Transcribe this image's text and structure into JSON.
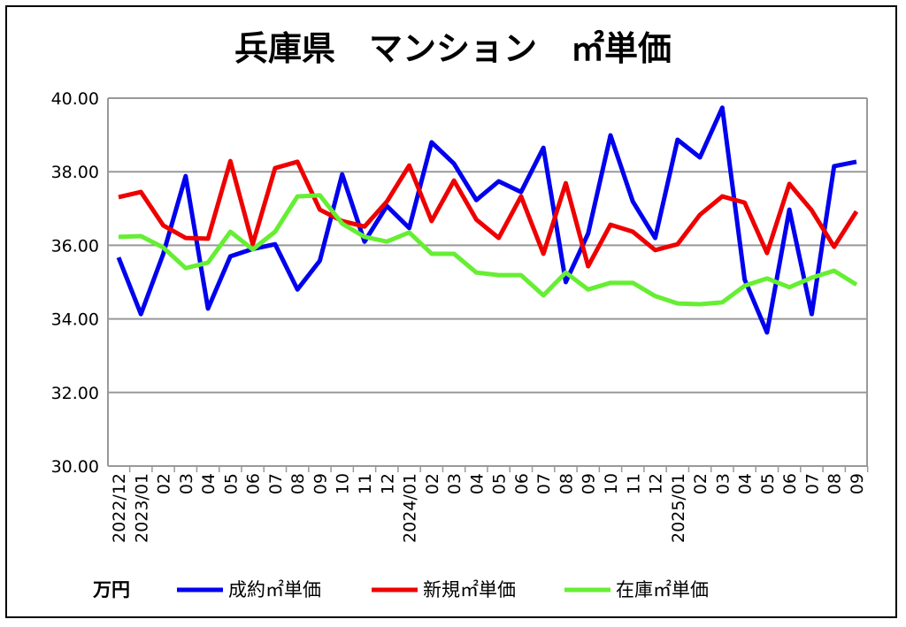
{
  "chart_data": {
    "type": "line",
    "title": "兵庫県　マンション　㎡単価",
    "unit_label": "万円",
    "ylim": [
      30,
      40
    ],
    "yticks": [
      "30.00",
      "32.00",
      "34.00",
      "36.00",
      "38.00",
      "40.00"
    ],
    "grid": true,
    "legend_placement": "bottom",
    "categories": [
      "2022/12",
      "2023/01",
      "02",
      "03",
      "04",
      "05",
      "06",
      "07",
      "08",
      "09",
      "10",
      "11",
      "12",
      "2024/01",
      "02",
      "03",
      "04",
      "05",
      "06",
      "07",
      "08",
      "09",
      "10",
      "11",
      "12",
      "2025/01",
      "02",
      "03",
      "04",
      "05",
      "06",
      "07",
      "08",
      "09"
    ],
    "series": [
      {
        "name": "成約㎡単価",
        "color": "#0000ee",
        "values": [
          35.67,
          34.13,
          35.77,
          37.88,
          34.28,
          35.7,
          35.9,
          36.03,
          34.8,
          35.58,
          37.93,
          36.1,
          37.07,
          36.47,
          38.8,
          38.22,
          37.23,
          37.74,
          37.45,
          38.65,
          35.0,
          36.32,
          38.99,
          37.19,
          36.2,
          38.87,
          38.39,
          39.74,
          35.07,
          33.63,
          36.97,
          34.13,
          38.15,
          38.27
        ]
      },
      {
        "name": "新規㎡単価",
        "color": "#ee0000",
        "values": [
          37.31,
          37.45,
          36.54,
          36.2,
          36.18,
          38.29,
          36.03,
          38.1,
          38.27,
          36.97,
          36.66,
          36.51,
          37.19,
          38.17,
          36.66,
          37.76,
          36.7,
          36.2,
          37.33,
          35.77,
          37.69,
          35.43,
          36.56,
          36.37,
          35.87,
          36.03,
          36.83,
          37.33,
          37.16,
          35.79,
          37.67,
          36.95,
          35.96,
          36.92
        ]
      },
      {
        "name": "在庫㎡単価",
        "color": "#66ee33",
        "values": [
          36.23,
          36.25,
          35.94,
          35.38,
          35.53,
          36.37,
          35.89,
          36.37,
          37.33,
          37.36,
          36.59,
          36.23,
          36.1,
          36.35,
          35.77,
          35.77,
          35.26,
          35.19,
          35.19,
          34.64,
          35.26,
          34.8,
          34.98,
          34.98,
          34.62,
          34.42,
          34.4,
          34.45,
          34.9,
          35.1,
          34.86,
          35.12,
          35.31,
          34.93
        ]
      }
    ]
  }
}
